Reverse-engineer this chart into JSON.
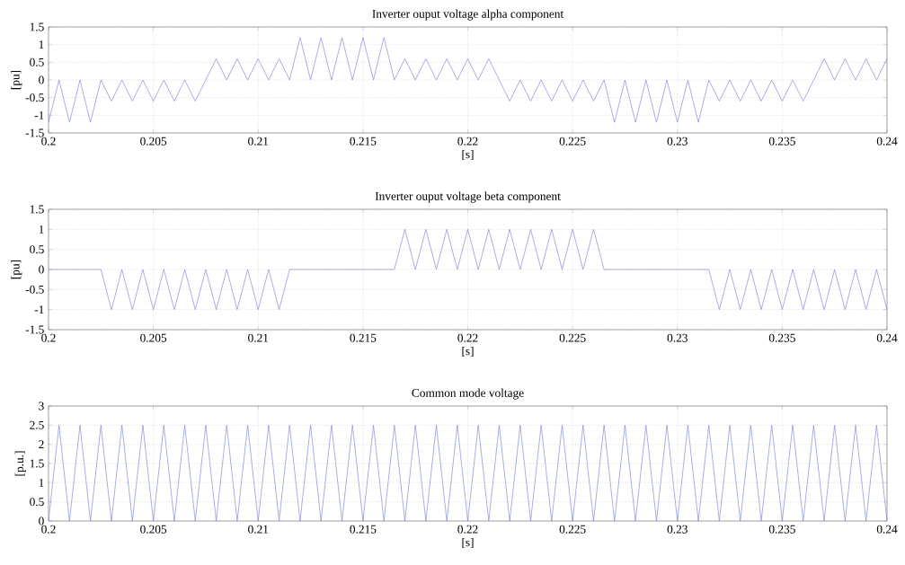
{
  "chart_data": [
    {
      "type": "line",
      "title": "Inverter ouput voltage alpha component",
      "xlabel": "[s]",
      "ylabel": "[pu]",
      "grid": true,
      "line_style": "solid",
      "color": "#7f85d8",
      "x": [
        0.2,
        0.2005,
        0.201,
        0.2015,
        0.202,
        0.2025,
        0.203,
        0.2035,
        0.204,
        0.2045,
        0.205,
        0.2055,
        0.206,
        0.2065,
        0.207,
        0.2075,
        0.208,
        0.2085,
        0.209,
        0.2095,
        0.21,
        0.2105,
        0.211,
        0.2115,
        0.212,
        0.2125,
        0.213,
        0.2135,
        0.214,
        0.2145,
        0.215,
        0.2155,
        0.216,
        0.2165,
        0.217,
        0.2175,
        0.218,
        0.2185,
        0.219,
        0.2195,
        0.22,
        0.2205,
        0.221,
        0.2215,
        0.222,
        0.2225,
        0.223,
        0.2235,
        0.224,
        0.2245,
        0.225,
        0.2255,
        0.226,
        0.2265,
        0.227,
        0.2275,
        0.228,
        0.2285,
        0.229,
        0.2295,
        0.23,
        0.2305,
        0.231,
        0.2315,
        0.232,
        0.2325,
        0.233,
        0.2335,
        0.234,
        0.2345,
        0.235,
        0.2355,
        0.236,
        0.2365,
        0.237,
        0.2375,
        0.238,
        0.2385,
        0.239,
        0.2395,
        0.24
      ],
      "values": [
        -1.2,
        0,
        -1.2,
        0,
        -1.2,
        0,
        -0.6,
        0,
        -0.6,
        0,
        -0.6,
        0,
        -0.6,
        0,
        -0.6,
        0,
        0.6,
        0,
        0.6,
        0,
        0.6,
        0,
        0.6,
        0,
        1.2,
        0,
        1.2,
        0,
        1.2,
        0,
        1.2,
        0,
        1.2,
        0,
        0.6,
        0,
        0.6,
        0,
        0.6,
        0,
        0.6,
        0,
        0.6,
        0,
        -0.6,
        0,
        -0.6,
        0,
        -0.6,
        0,
        -0.6,
        0,
        -0.6,
        0,
        -1.2,
        0,
        -1.2,
        0,
        -1.2,
        0,
        -1.2,
        0,
        -1.2,
        0,
        -0.6,
        0,
        -0.6,
        0,
        -0.6,
        0,
        -0.6,
        0,
        -0.6,
        0,
        0.6,
        0,
        0.6,
        0,
        0.6,
        0,
        0.6
      ],
      "xlim": [
        0.2,
        0.24
      ],
      "ylim": [
        -1.5,
        1.5
      ],
      "xticks": [
        0.2,
        0.205,
        0.21,
        0.215,
        0.22,
        0.225,
        0.23,
        0.235,
        0.24
      ],
      "yticks": [
        -1.5,
        -1,
        -0.5,
        0,
        0.5,
        1,
        1.5
      ]
    },
    {
      "type": "line",
      "title": "Inverter ouput voltage beta component",
      "xlabel": "[s]",
      "ylabel": "[pu]",
      "grid": true,
      "line_style": "solid",
      "color": "#7f85d8",
      "x": [
        0.2,
        0.2005,
        0.201,
        0.2015,
        0.202,
        0.2025,
        0.203,
        0.2035,
        0.204,
        0.2045,
        0.205,
        0.2055,
        0.206,
        0.2065,
        0.207,
        0.2075,
        0.208,
        0.2085,
        0.209,
        0.2095,
        0.21,
        0.2105,
        0.211,
        0.2115,
        0.212,
        0.2125,
        0.213,
        0.2135,
        0.214,
        0.2145,
        0.215,
        0.2155,
        0.216,
        0.2165,
        0.217,
        0.2175,
        0.218,
        0.2185,
        0.219,
        0.2195,
        0.22,
        0.2205,
        0.221,
        0.2215,
        0.222,
        0.2225,
        0.223,
        0.2235,
        0.224,
        0.2245,
        0.225,
        0.2255,
        0.226,
        0.2265,
        0.227,
        0.2275,
        0.228,
        0.2285,
        0.229,
        0.2295,
        0.23,
        0.2305,
        0.231,
        0.2315,
        0.232,
        0.2325,
        0.233,
        0.2335,
        0.234,
        0.2345,
        0.235,
        0.2355,
        0.236,
        0.2365,
        0.237,
        0.2375,
        0.238,
        0.2385,
        0.239,
        0.2395,
        0.24
      ],
      "values": [
        0,
        0,
        0,
        0,
        0,
        0,
        -1,
        0,
        -1,
        0,
        -1,
        0,
        -1,
        0,
        -1,
        0,
        -1,
        0,
        -1,
        0,
        -1,
        0,
        -1,
        0,
        0,
        0,
        0,
        0,
        0,
        0,
        0,
        0,
        0,
        0,
        1,
        0,
        1,
        0,
        1,
        0,
        1,
        0,
        1,
        0,
        1,
        0,
        1,
        0,
        1,
        0,
        1,
        0,
        1,
        0,
        0,
        0,
        0,
        0,
        0,
        0,
        0,
        0,
        0,
        0,
        -1,
        0,
        -1,
        0,
        -1,
        0,
        -1,
        0,
        -1,
        0,
        -1,
        0,
        -1,
        0,
        -1,
        0,
        -1
      ],
      "xlim": [
        0.2,
        0.24
      ],
      "ylim": [
        -1.5,
        1.5
      ],
      "xticks": [
        0.2,
        0.205,
        0.21,
        0.215,
        0.22,
        0.225,
        0.23,
        0.235,
        0.24
      ],
      "yticks": [
        -1.5,
        -1,
        -0.5,
        0,
        0.5,
        1,
        1.5
      ]
    },
    {
      "type": "line",
      "title": "Common mode voltage",
      "xlabel": "[s]",
      "ylabel": "[p.u.]",
      "grid": true,
      "line_style": "solid",
      "color": "#7f85d8",
      "x": [
        0.2,
        0.2005,
        0.201,
        0.2015,
        0.202,
        0.2025,
        0.203,
        0.2035,
        0.204,
        0.2045,
        0.205,
        0.2055,
        0.206,
        0.2065,
        0.207,
        0.2075,
        0.208,
        0.2085,
        0.209,
        0.2095,
        0.21,
        0.2105,
        0.211,
        0.2115,
        0.212,
        0.2125,
        0.213,
        0.2135,
        0.214,
        0.2145,
        0.215,
        0.2155,
        0.216,
        0.2165,
        0.217,
        0.2175,
        0.218,
        0.2185,
        0.219,
        0.2195,
        0.22,
        0.2205,
        0.221,
        0.2215,
        0.222,
        0.2225,
        0.223,
        0.2235,
        0.224,
        0.2245,
        0.225,
        0.2255,
        0.226,
        0.2265,
        0.227,
        0.2275,
        0.228,
        0.2285,
        0.229,
        0.2295,
        0.23,
        0.2305,
        0.231,
        0.2315,
        0.232,
        0.2325,
        0.233,
        0.2335,
        0.234,
        0.2345,
        0.235,
        0.2355,
        0.236,
        0.2365,
        0.237,
        0.2375,
        0.238,
        0.2385,
        0.239,
        0.2395,
        0.24
      ],
      "values": [
        0,
        2.5,
        0,
        2.5,
        0,
        2.5,
        0,
        2.5,
        0,
        2.5,
        0,
        2.5,
        0,
        2.5,
        0,
        2.5,
        0,
        2.5,
        0,
        2.5,
        0,
        2.5,
        0,
        2.5,
        0,
        2.5,
        0,
        2.5,
        0,
        2.5,
        0,
        2.5,
        0,
        2.5,
        0,
        2.5,
        0,
        2.5,
        0,
        2.5,
        0,
        2.5,
        0,
        2.5,
        0,
        2.5,
        0,
        2.5,
        0,
        2.5,
        0,
        2.5,
        0,
        2.5,
        0,
        2.5,
        0,
        2.5,
        0,
        2.5,
        0,
        2.5,
        0,
        2.5,
        0,
        2.5,
        0,
        2.5,
        0,
        2.5,
        0,
        2.5,
        0,
        2.5,
        0,
        2.5,
        0,
        2.5,
        0,
        2.5,
        0
      ],
      "xlim": [
        0.2,
        0.24
      ],
      "ylim": [
        0,
        3
      ],
      "xticks": [
        0.2,
        0.205,
        0.21,
        0.215,
        0.22,
        0.225,
        0.23,
        0.235,
        0.24
      ],
      "yticks": [
        0,
        0.5,
        1,
        1.5,
        2,
        2.5,
        3
      ]
    }
  ]
}
